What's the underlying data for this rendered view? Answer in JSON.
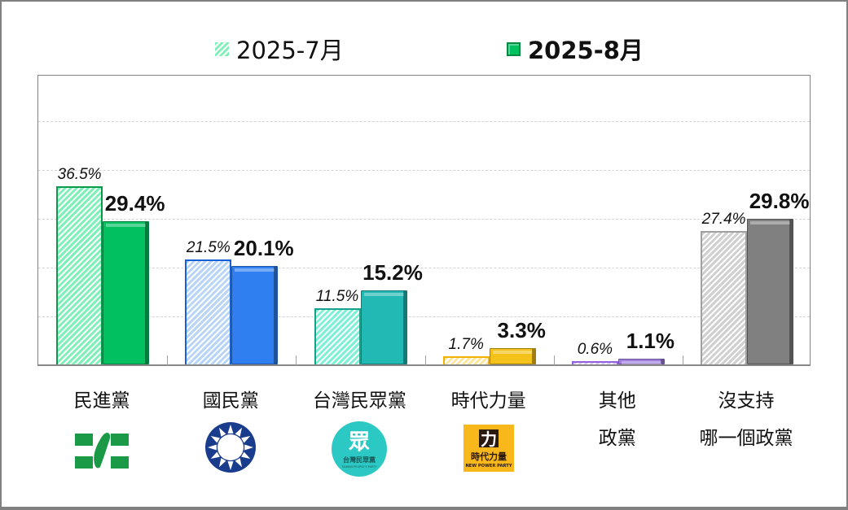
{
  "chart_data": {
    "type": "bar",
    "title": "",
    "xlabel": "",
    "ylabel": "",
    "ylim": [
      0,
      60
    ],
    "gridlines": [
      10,
      20,
      30,
      40,
      50
    ],
    "grid": true,
    "legend_position": "top",
    "categories": [
      "民進黨",
      "國民黨",
      "台灣民眾黨",
      "時代力量",
      "其他政黨",
      "沒支持哪一個政黨"
    ],
    "series": [
      {
        "name": "2025-7月",
        "values": [
          36.5,
          21.5,
          11.5,
          1.7,
          0.6,
          27.4
        ],
        "style": "hatched"
      },
      {
        "name": "2025-8月",
        "values": [
          29.4,
          20.1,
          15.2,
          3.3,
          1.1,
          29.8
        ],
        "style": "solid"
      }
    ],
    "data_labels": {
      "jul": [
        "36.5%",
        "21.5%",
        "11.5%",
        "1.7%",
        "0.6%",
        "27.4%"
      ],
      "aug": [
        "29.4%",
        "20.1%",
        "15.2%",
        "3.3%",
        "1.1%",
        "29.8%"
      ]
    }
  },
  "legend": {
    "jul_label": "2025-7月",
    "aug_label": "2025-8月"
  },
  "categories": [
    {
      "line1": "民進黨",
      "line2": "",
      "logo": "dpp-logo",
      "color": "#00c060",
      "dark": "#0a9a4c",
      "light": "#7ef0b8"
    },
    {
      "line1": "國民黨",
      "line2": "",
      "logo": "kmt-logo",
      "color": "#2f7ff0",
      "dark": "#1560d8",
      "light": "#b8d4f6"
    },
    {
      "line1": "台灣民眾黨",
      "line2": "",
      "logo": "tpp-logo",
      "color": "#22b8b4",
      "dark": "#17a08c",
      "light": "#7ef0d6"
    },
    {
      "line1": "時代力量",
      "line2": "",
      "logo": "npp-logo",
      "color": "#f4c21a",
      "dark": "#f0b400",
      "light": "#fde6a0"
    },
    {
      "line1": "其他",
      "line2": "政黨",
      "logo": "",
      "color": "#a07ee0",
      "dark": "#9060e0",
      "light": "#d8c8f4"
    },
    {
      "line1": "沒支持",
      "line2": "哪一個政黨",
      "logo": "",
      "color": "#808080",
      "dark": "#a0a0a0",
      "light": "#d0d0d0"
    }
  ],
  "logos": {
    "tpp_text": "台灣民眾黨",
    "tpp_glyph": "眾",
    "npp_glyph": "力",
    "npp_text": "時代力量",
    "npp_sub": "NEW POWER PARTY"
  }
}
